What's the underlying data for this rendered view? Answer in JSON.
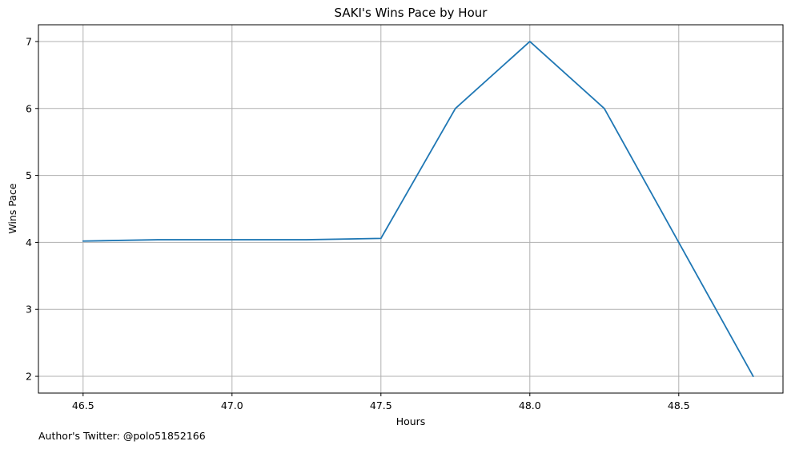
{
  "chart_data": {
    "type": "line",
    "title": "SAKI's Wins Pace by Hour",
    "xlabel": "Hours",
    "ylabel": "Wins Pace",
    "footer": "Author's Twitter: @polo51852166",
    "x_ticks": [
      "46.5",
      "47.0",
      "47.5",
      "48.0",
      "48.5"
    ],
    "y_ticks": [
      "2",
      "3",
      "4",
      "5",
      "6",
      "7"
    ],
    "xlim": [
      46.35,
      48.85
    ],
    "ylim": [
      1.75,
      7.25
    ],
    "grid": true,
    "line_color": "#1f77b4",
    "series": [
      {
        "x": [
          46.5,
          46.75,
          47.0,
          47.25,
          47.5,
          47.75,
          48.0,
          48.25,
          48.5,
          48.75
        ],
        "values": [
          4.02,
          4.04,
          4.04,
          4.04,
          4.06,
          6.0,
          7.0,
          6.0,
          4.0,
          2.0
        ]
      }
    ]
  }
}
